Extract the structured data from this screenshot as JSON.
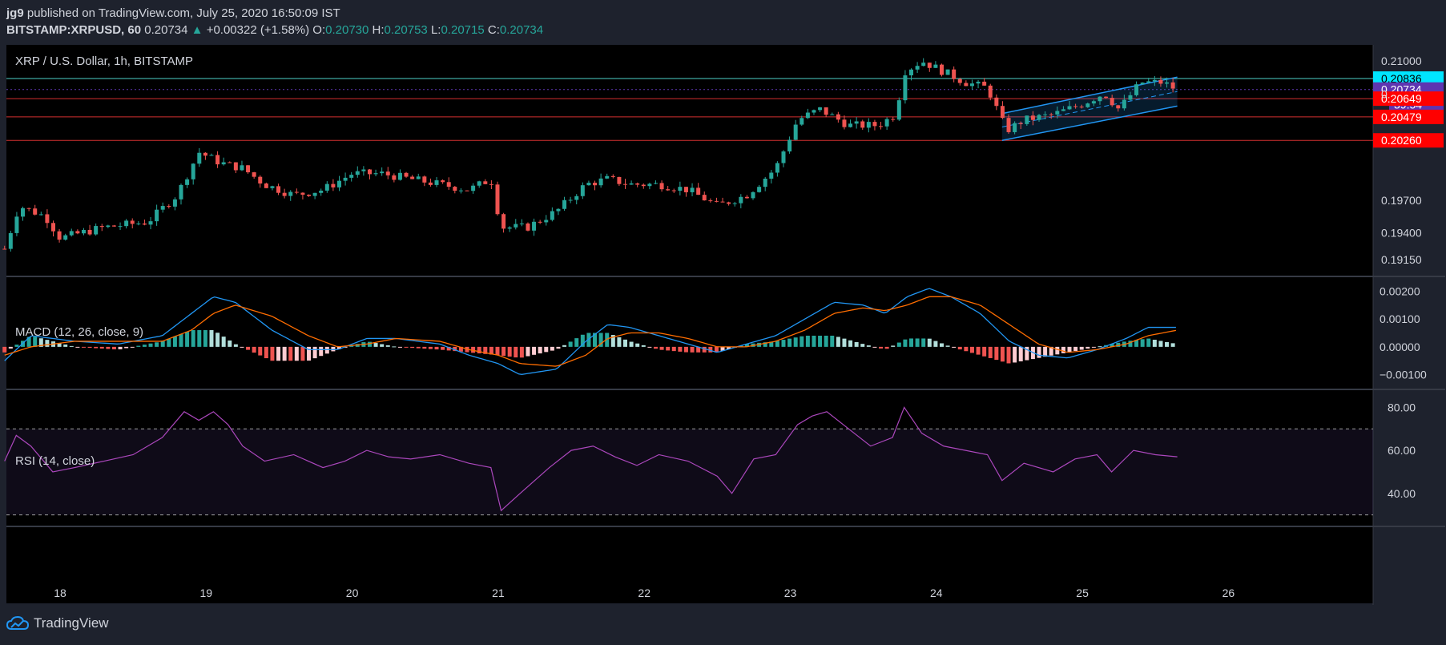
{
  "header": {
    "author": "jg9",
    "published_text": "published on TradingView.com, July 25, 2020 16:50:09 IST",
    "symbol": "BITSTAMP:XRPUSD, 60",
    "last": "0.20734",
    "change": "+0.00322 (+1.58%)",
    "o_label": "O:",
    "o_value": "0.20730",
    "h_label": "H:",
    "h_value": "0.20753",
    "l_label": "L:",
    "l_value": "0.20715",
    "c_label": "C:",
    "c_value": "0.20734"
  },
  "footer": {
    "brand": "TradingView"
  },
  "colors": {
    "up": "#26a69a",
    "down": "#ef5350",
    "bg": "#000000",
    "macd_line": "#2196f3",
    "signal_line": "#ff6d00",
    "rsi_line": "#ab47bc",
    "cyan_level": "#00e5ff",
    "red_level": "#ff0000",
    "channel": "#2196f3",
    "price_label": "#5e35b1"
  },
  "chart_data": [
    {
      "type": "candlestick",
      "title": "XRP / U.S. Dollar, 1h, BITSTAMP",
      "x_ticks": [
        "18",
        "19",
        "20",
        "21",
        "22",
        "23",
        "24",
        "25",
        "26"
      ],
      "y_ticks": [
        "0.21000",
        "0.19700",
        "0.19400",
        "0.19150"
      ],
      "ylim": [
        0.19,
        0.2115
      ],
      "horizontal_levels": [
        {
          "value": 0.20836,
          "label": "0.20836",
          "color": "cyan"
        },
        {
          "value": 0.20734,
          "label": "0.20734",
          "color": "purple",
          "countdown": "39:54"
        },
        {
          "value": 0.20649,
          "label": "0.20649",
          "color": "red"
        },
        {
          "value": 0.20479,
          "label": "0.20479",
          "color": "red"
        },
        {
          "value": 0.2026,
          "label": "0.20260",
          "color": "red"
        }
      ],
      "partial_tick": "0.",
      "channel": {
        "x_start_day": 24.45,
        "x_end_day": 25.65,
        "upper": [
          0.2051,
          0.2085
        ],
        "lower": [
          0.2026,
          0.2058
        ]
      },
      "close_path": [
        {
          "day": 17.62,
          "close": 0.1925
        },
        {
          "day": 17.72,
          "close": 0.1965
        },
        {
          "day": 17.9,
          "close": 0.1955
        },
        {
          "day": 18.0,
          "close": 0.1935
        },
        {
          "day": 18.3,
          "close": 0.1945
        },
        {
          "day": 18.6,
          "close": 0.195
        },
        {
          "day": 18.8,
          "close": 0.1975
        },
        {
          "day": 18.95,
          "close": 0.2015
        },
        {
          "day": 19.1,
          "close": 0.2005
        },
        {
          "day": 19.25,
          "close": 0.2
        },
        {
          "day": 19.4,
          "close": 0.1985
        },
        {
          "day": 19.6,
          "close": 0.1975
        },
        {
          "day": 19.8,
          "close": 0.198
        },
        {
          "day": 20.0,
          "close": 0.1995
        },
        {
          "day": 20.2,
          "close": 0.1995
        },
        {
          "day": 20.4,
          "close": 0.199
        },
        {
          "day": 20.6,
          "close": 0.1985
        },
        {
          "day": 20.8,
          "close": 0.198
        },
        {
          "day": 20.95,
          "close": 0.199
        },
        {
          "day": 21.02,
          "close": 0.1945
        },
        {
          "day": 21.2,
          "close": 0.1945
        },
        {
          "day": 21.4,
          "close": 0.196
        },
        {
          "day": 21.6,
          "close": 0.1985
        },
        {
          "day": 21.75,
          "close": 0.199
        },
        {
          "day": 21.9,
          "close": 0.1985
        },
        {
          "day": 22.1,
          "close": 0.1985
        },
        {
          "day": 22.3,
          "close": 0.198
        },
        {
          "day": 22.5,
          "close": 0.1965
        },
        {
          "day": 22.7,
          "close": 0.1975
        },
        {
          "day": 22.9,
          "close": 0.2
        },
        {
          "day": 23.05,
          "close": 0.2045
        },
        {
          "day": 23.2,
          "close": 0.2055
        },
        {
          "day": 23.4,
          "close": 0.204
        },
        {
          "day": 23.6,
          "close": 0.204
        },
        {
          "day": 23.72,
          "close": 0.205
        },
        {
          "day": 23.78,
          "close": 0.209
        },
        {
          "day": 23.9,
          "close": 0.21
        },
        {
          "day": 24.05,
          "close": 0.209
        },
        {
          "day": 24.2,
          "close": 0.208
        },
        {
          "day": 24.35,
          "close": 0.2075
        },
        {
          "day": 24.48,
          "close": 0.2035
        },
        {
          "day": 24.6,
          "close": 0.2045
        },
        {
          "day": 24.8,
          "close": 0.205
        },
        {
          "day": 25.0,
          "close": 0.206
        },
        {
          "day": 25.15,
          "close": 0.207
        },
        {
          "day": 25.25,
          "close": 0.2055
        },
        {
          "day": 25.4,
          "close": 0.208
        },
        {
          "day": 25.55,
          "close": 0.208
        },
        {
          "day": 25.65,
          "close": 0.2073
        }
      ]
    },
    {
      "type": "line",
      "title": "MACD (12, 26, close, 9)",
      "y_ticks": [
        "0.00200",
        "0.00100",
        "0.00000",
        "−0.00100"
      ],
      "ylim": [
        -0.0015,
        0.0025
      ],
      "series": [
        {
          "name": "MACD",
          "x": [
            17.62,
            17.8,
            18.1,
            18.4,
            18.7,
            18.9,
            19.05,
            19.2,
            19.45,
            19.7,
            19.9,
            20.1,
            20.3,
            20.6,
            20.8,
            21.0,
            21.15,
            21.4,
            21.6,
            21.75,
            21.9,
            22.1,
            22.3,
            22.5,
            22.7,
            22.9,
            23.1,
            23.3,
            23.5,
            23.65,
            23.8,
            23.95,
            24.1,
            24.3,
            24.5,
            24.7,
            24.9,
            25.1,
            25.3,
            25.45,
            25.65
          ],
          "y": [
            -0.0005,
            0.0004,
            0.0002,
            0.0001,
            0.0004,
            0.0012,
            0.0018,
            0.0016,
            0.0006,
            -0.0001,
            -0.0001,
            0.0003,
            0.0003,
            0.0001,
            -0.0003,
            -0.0006,
            -0.001,
            -0.0008,
            0.0002,
            0.0008,
            0.0007,
            0.0004,
            0.0001,
            -0.0002,
            0.0001,
            0.0004,
            0.001,
            0.0016,
            0.0015,
            0.0012,
            0.0018,
            0.0021,
            0.0018,
            0.0012,
            0.0002,
            -0.0003,
            -0.0004,
            -0.0001,
            0.0003,
            0.0007,
            0.0007
          ]
        },
        {
          "name": "Signal",
          "x": [
            17.62,
            17.8,
            18.1,
            18.4,
            18.7,
            18.9,
            19.05,
            19.2,
            19.45,
            19.7,
            19.9,
            20.1,
            20.3,
            20.6,
            20.8,
            21.0,
            21.15,
            21.4,
            21.6,
            21.75,
            21.9,
            22.1,
            22.3,
            22.5,
            22.7,
            22.9,
            23.1,
            23.3,
            23.5,
            23.65,
            23.8,
            23.95,
            24.1,
            24.3,
            24.5,
            24.7,
            24.9,
            25.1,
            25.3,
            25.45,
            25.65
          ],
          "y": [
            -0.0003,
            0.0,
            0.0002,
            0.0002,
            0.0002,
            0.0006,
            0.0012,
            0.0015,
            0.0011,
            0.0004,
            0.0,
            0.0001,
            0.0003,
            0.0002,
            -0.0001,
            -0.0003,
            -0.0006,
            -0.0007,
            -0.0003,
            0.0003,
            0.0005,
            0.0005,
            0.0003,
            0.0,
            0.0,
            0.0002,
            0.0006,
            0.0012,
            0.0014,
            0.0013,
            0.0015,
            0.0018,
            0.0018,
            0.0015,
            0.0008,
            0.0001,
            -0.0002,
            -0.0001,
            0.0001,
            0.0004,
            0.0006
          ]
        }
      ]
    },
    {
      "type": "line",
      "title": "RSI (14, close)",
      "y_ticks": [
        "80.00",
        "60.00",
        "40.00"
      ],
      "ylim": [
        25,
        88
      ],
      "band": [
        30,
        70
      ],
      "series": [
        {
          "name": "RSI",
          "x": [
            17.62,
            17.7,
            17.8,
            17.95,
            18.1,
            18.3,
            18.5,
            18.7,
            18.85,
            18.95,
            19.05,
            19.15,
            19.25,
            19.4,
            19.6,
            19.8,
            19.95,
            20.1,
            20.25,
            20.4,
            20.6,
            20.8,
            20.95,
            21.02,
            21.15,
            21.35,
            21.5,
            21.65,
            21.8,
            21.95,
            22.1,
            22.3,
            22.5,
            22.6,
            22.75,
            22.9,
            23.05,
            23.15,
            23.25,
            23.4,
            23.55,
            23.7,
            23.78,
            23.9,
            24.05,
            24.2,
            24.35,
            24.45,
            24.6,
            24.8,
            24.95,
            25.1,
            25.2,
            25.35,
            25.5,
            25.65
          ],
          "y": [
            55,
            67,
            62,
            50,
            52,
            55,
            58,
            66,
            78,
            74,
            78,
            72,
            62,
            55,
            58,
            52,
            55,
            60,
            57,
            56,
            58,
            54,
            52,
            32,
            40,
            52,
            60,
            62,
            57,
            53,
            58,
            55,
            48,
            40,
            56,
            58,
            72,
            76,
            78,
            70,
            62,
            66,
            80,
            68,
            62,
            60,
            58,
            46,
            54,
            50,
            56,
            58,
            50,
            60,
            58,
            57
          ]
        }
      ]
    }
  ]
}
